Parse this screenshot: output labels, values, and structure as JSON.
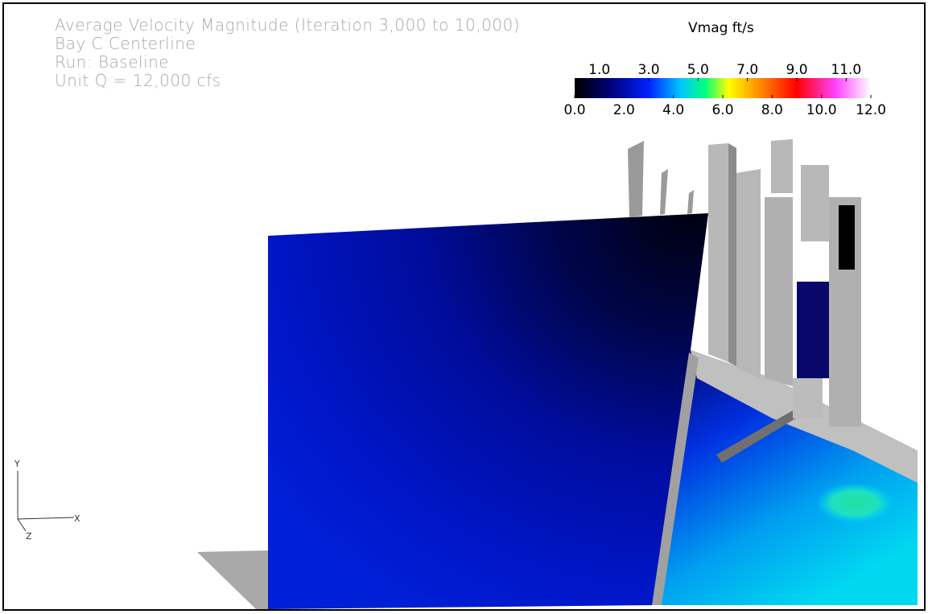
{
  "header": {
    "lines": [
      "Average Velocity Magnitude (Iteration 3,000 to 10,000)",
      "Bay C Centerline",
      "Run: Baseline",
      "Unit Q = 12,000 cfs"
    ]
  },
  "colorbar": {
    "title": "Vmag ft/s",
    "range": [
      0,
      12
    ],
    "ticks": [
      {
        "value": 0,
        "label": "0.0"
      },
      {
        "value": 1,
        "label": "1.0"
      },
      {
        "value": 2,
        "label": "2.0"
      },
      {
        "value": 3,
        "label": "3.0"
      },
      {
        "value": 4,
        "label": "4.0"
      },
      {
        "value": 5,
        "label": "5.0"
      },
      {
        "value": 6,
        "label": "6.0"
      },
      {
        "value": 7,
        "label": "7.0"
      },
      {
        "value": 8,
        "label": "8.0"
      },
      {
        "value": 9,
        "label": "9.0"
      },
      {
        "value": 10,
        "label": "10.0"
      },
      {
        "value": 11,
        "label": "11.0"
      },
      {
        "value": 12,
        "label": "12.0"
      }
    ]
  },
  "axis_triad": {
    "labels": [
      "Y",
      "X",
      "Z"
    ]
  }
}
